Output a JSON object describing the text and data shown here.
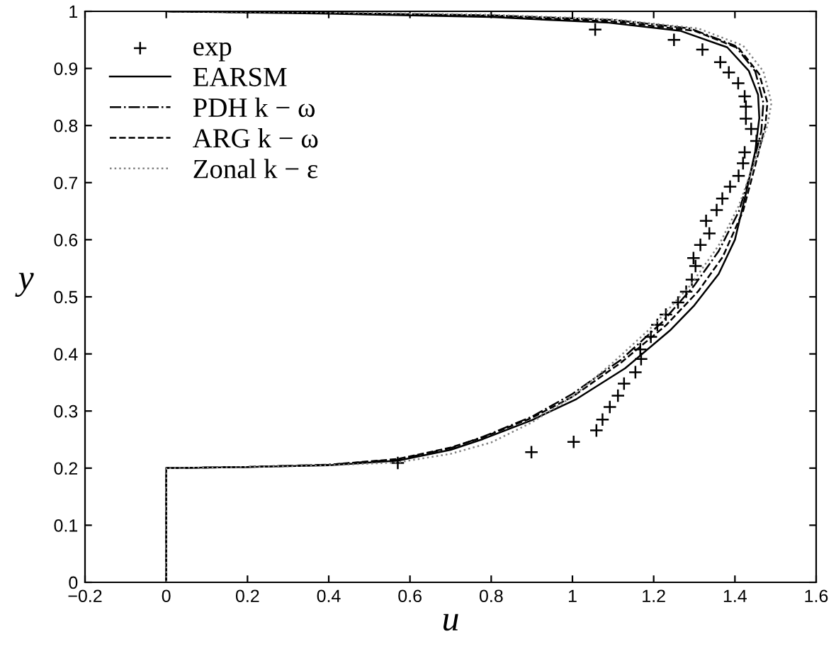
{
  "chart_data": {
    "type": "line",
    "xlabel": "u",
    "ylabel": "y",
    "xlim": [
      -0.2,
      1.6
    ],
    "ylim": [
      0,
      1
    ],
    "xticks": [
      {
        "value": -0.2,
        "label": "−0.2"
      },
      0,
      0.2,
      0.4,
      0.6,
      0.8,
      1,
      1.2,
      1.4,
      1.6
    ],
    "yticks": [
      0,
      0.1,
      0.2,
      0.3,
      0.4,
      0.5,
      0.6,
      0.7,
      0.8,
      0.9,
      1
    ],
    "legend": "top left",
    "grid": false,
    "series": [
      {
        "name": "exp",
        "type": "scatter",
        "marker": "cross",
        "color": "#000000",
        "x": [
          1.056,
          1.25,
          1.32,
          1.364,
          1.385,
          1.408,
          1.424,
          1.427,
          1.427,
          1.44,
          1.453,
          1.424,
          1.42,
          1.409,
          1.388,
          1.369,
          1.355,
          1.329,
          1.337,
          1.315,
          1.298,
          1.303,
          1.294,
          1.28,
          1.26,
          1.23,
          1.209,
          1.193,
          1.167,
          1.169,
          1.155,
          1.127,
          1.112,
          1.092,
          1.074,
          1.059,
          1.003,
          0.899,
          0.57
        ],
        "values": [
          0.968,
          0.95,
          0.933,
          0.911,
          0.893,
          0.874,
          0.851,
          0.833,
          0.812,
          0.794,
          0.773,
          0.753,
          0.734,
          0.712,
          0.693,
          0.672,
          0.652,
          0.633,
          0.611,
          0.591,
          0.568,
          0.554,
          0.53,
          0.509,
          0.49,
          0.469,
          0.451,
          0.43,
          0.408,
          0.391,
          0.368,
          0.348,
          0.327,
          0.307,
          0.285,
          0.266,
          0.246,
          0.228,
          0.209
        ]
      },
      {
        "name": "EARSM",
        "line_style": "solid",
        "color": "#000000",
        "x": [
          0,
          0,
          0.2,
          0.4,
          0.57,
          0.7,
          0.78,
          0.9,
          1.01,
          1.13,
          1.24,
          1.3,
          1.36,
          1.4,
          1.43,
          1.45,
          1.46,
          1.457,
          1.434,
          1.381,
          1.265,
          1.09,
          0.8,
          0.4,
          0
        ],
        "values": [
          0,
          0.2,
          0.202,
          0.205,
          0.213,
          0.232,
          0.251,
          0.284,
          0.321,
          0.375,
          0.441,
          0.485,
          0.54,
          0.6,
          0.69,
          0.755,
          0.813,
          0.854,
          0.896,
          0.937,
          0.966,
          0.98,
          0.99,
          0.996,
          1
        ]
      },
      {
        "name": "PDH k − ω",
        "line_style": "dashdot",
        "color": "#000000",
        "x": [
          0,
          0,
          0.2,
          0.4,
          0.57,
          0.7,
          0.78,
          0.9,
          1.0,
          1.12,
          1.22,
          1.3,
          1.36,
          1.41,
          1.44,
          1.465,
          1.47,
          1.45,
          1.4,
          1.29,
          1.1,
          0.8,
          0.4,
          0
        ],
        "values": [
          0,
          0.2,
          0.202,
          0.206,
          0.215,
          0.235,
          0.255,
          0.29,
          0.33,
          0.39,
          0.455,
          0.52,
          0.58,
          0.65,
          0.72,
          0.79,
          0.84,
          0.895,
          0.94,
          0.97,
          0.985,
          0.993,
          0.997,
          1
        ]
      },
      {
        "name": "ARG k − ω",
        "line_style": "dashed",
        "color": "#000000",
        "x": [
          0,
          0,
          0.2,
          0.4,
          0.57,
          0.7,
          0.78,
          0.9,
          1.0,
          1.12,
          1.23,
          1.31,
          1.37,
          1.42,
          1.45,
          1.475,
          1.48,
          1.46,
          1.41,
          1.3,
          1.1,
          0.8,
          0.4,
          0
        ],
        "values": [
          0,
          0.2,
          0.202,
          0.206,
          0.216,
          0.236,
          0.254,
          0.288,
          0.325,
          0.385,
          0.45,
          0.51,
          0.57,
          0.65,
          0.73,
          0.8,
          0.84,
          0.89,
          0.935,
          0.966,
          0.982,
          0.992,
          0.997,
          1
        ]
      },
      {
        "name": "Zonal k − ε",
        "line_style": "dotted",
        "color": "#808080",
        "x": [
          0,
          0,
          0.2,
          0.4,
          0.57,
          0.7,
          0.8,
          0.9,
          1.0,
          1.1,
          1.2,
          1.29,
          1.36,
          1.41,
          1.45,
          1.48,
          1.49,
          1.47,
          1.42,
          1.31,
          1.1,
          0.8,
          0.4,
          0
        ],
        "values": [
          0,
          0.2,
          0.202,
          0.205,
          0.21,
          0.225,
          0.245,
          0.28,
          0.325,
          0.385,
          0.45,
          0.52,
          0.59,
          0.66,
          0.74,
          0.8,
          0.84,
          0.895,
          0.94,
          0.97,
          0.986,
          0.994,
          0.998,
          1
        ]
      }
    ]
  }
}
